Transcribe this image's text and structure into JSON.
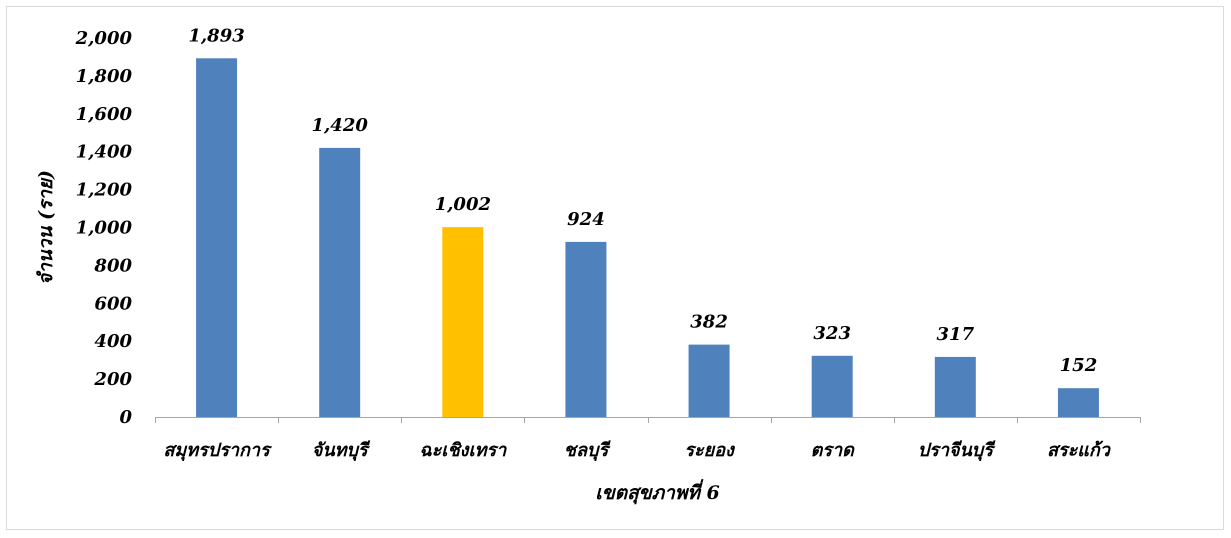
{
  "chart_data": {
    "type": "bar",
    "title": "",
    "xlabel": "เขตสุขภาพที่ 6",
    "ylabel": "จำนวน (ราย)",
    "categories": [
      "สมุทรปราการ",
      "จันทบุรี",
      "ฉะเชิงเทรา",
      "ชลบุรี",
      "ระยอง",
      "ตราด",
      "ปราจีนบุรี",
      "สระแก้ว"
    ],
    "values": [
      1893,
      1420,
      1002,
      924,
      382,
      323,
      317,
      152
    ],
    "data_labels": [
      "1,893",
      "1,420",
      "1,002",
      "924",
      "382",
      "323",
      "317",
      "152"
    ],
    "ylim": [
      0,
      2000
    ],
    "yticks": [
      0,
      200,
      400,
      600,
      800,
      1000,
      1200,
      1400,
      1600,
      1800,
      2000
    ],
    "ytick_labels": [
      "0",
      "200",
      "400",
      "600",
      "800",
      "1,000",
      "1,200",
      "1,400",
      "1,600",
      "1,800",
      "2,000"
    ],
    "bar_colors": [
      "#4f81bd",
      "#4f81bd",
      "#ffc000",
      "#4f81bd",
      "#4f81bd",
      "#4f81bd",
      "#4f81bd",
      "#4f81bd"
    ],
    "axis_color": "#a6a6a6",
    "grid": false,
    "legend": "none"
  }
}
